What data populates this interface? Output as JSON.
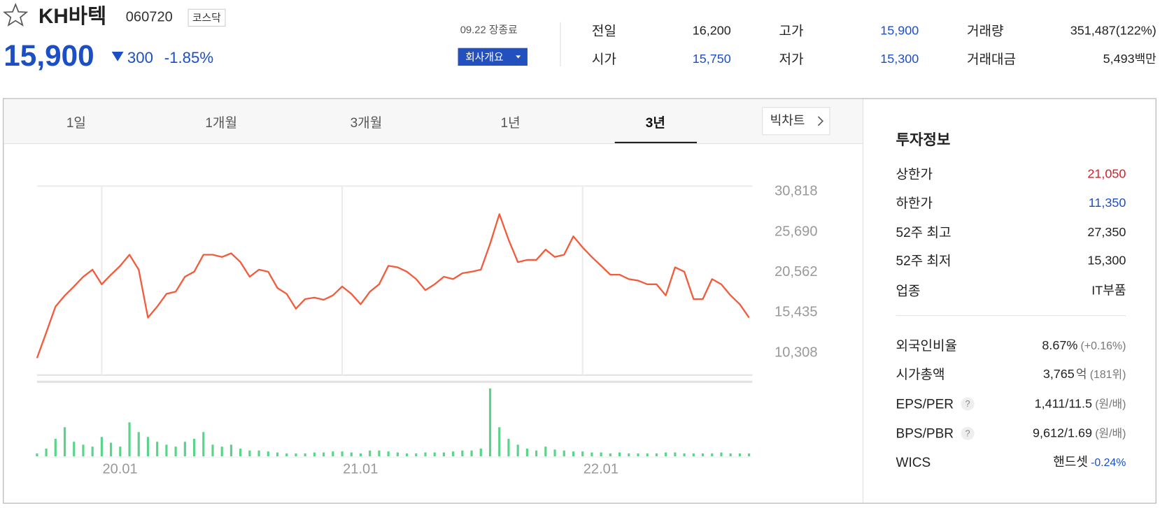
{
  "header": {
    "name": "KH바텍",
    "code": "060720",
    "market": "코스닥",
    "price": "15,900",
    "change": "300",
    "change_rate": "-1.85%",
    "date_status": "09.22 장종료",
    "company_button": "회사개요"
  },
  "stats": [
    {
      "label": "전일",
      "value": "16,200"
    },
    {
      "label": "고가",
      "value": "15,900"
    },
    {
      "label": "거래량",
      "value": "351,487(122%)"
    },
    {
      "label": "시가",
      "value": "15,750"
    },
    {
      "label": "저가",
      "value": "15,300"
    },
    {
      "label": "거래대금",
      "value": "5,493",
      "unit": "백만"
    }
  ],
  "tabs": [
    "1일",
    "1개월",
    "3개월",
    "1년",
    "3년"
  ],
  "big_chart": "빅차트",
  "chart_data": [
    {
      "type": "line",
      "color": "#f25c3c",
      "categories": [
        null,
        null,
        null,
        null,
        null,
        null,
        null,
        "20.01",
        null,
        null,
        null,
        null,
        null,
        null,
        null,
        null,
        null,
        null,
        null,
        null,
        null,
        null,
        null,
        null,
        null,
        null,
        null,
        null,
        null,
        null,
        null,
        null,
        null,
        "21.01",
        null,
        null,
        null,
        null,
        null,
        null,
        null,
        null,
        null,
        null,
        null,
        null,
        null,
        null,
        null,
        null,
        null,
        null,
        null,
        null,
        null,
        null,
        null,
        null,
        null,
        "22.01",
        null,
        null,
        null,
        null,
        null,
        null,
        null,
        null,
        null,
        null,
        null,
        null,
        null,
        null,
        null,
        null,
        null,
        null
      ],
      "values": [
        9650,
        12900,
        16200,
        17600,
        18760,
        20000,
        20900,
        19040,
        20260,
        21390,
        22800,
        20900,
        14800,
        16200,
        17820,
        18100,
        20000,
        20640,
        22800,
        22800,
        22510,
        22980,
        21860,
        20000,
        20900,
        20640,
        18570,
        17820,
        15940,
        17160,
        17350,
        17070,
        17630,
        18760,
        17820,
        16500,
        18100,
        19040,
        21390,
        21200,
        20640,
        19700,
        18290,
        19040,
        20000,
        19700,
        20450,
        20640,
        20900,
        24200,
        27960,
        24700,
        21860,
        22140,
        22140,
        23450,
        22510,
        22800,
        25140,
        23730,
        22510,
        21390,
        20260,
        20260,
        19700,
        19510,
        19040,
        19040,
        17630,
        21200,
        20640,
        17160,
        17160,
        19700,
        19040,
        17630,
        16500,
        14800
      ],
      "ylim": [
        7491,
        31716
      ],
      "yticks": [
        {
          "value": 10308,
          "label": "10,308"
        },
        {
          "value": 15435,
          "label": "15,435"
        },
        {
          "value": 20562,
          "label": "20,562"
        },
        {
          "value": 25690,
          "label": "25,690"
        },
        {
          "value": 30818,
          "label": "30,818"
        }
      ]
    },
    {
      "type": "bar",
      "color": "#5ad48a",
      "values": [
        30000,
        80000,
        180000,
        300000,
        150000,
        120000,
        100000,
        200000,
        140000,
        100000,
        350000,
        250000,
        200000,
        150000,
        120000,
        100000,
        150000,
        180000,
        250000,
        120000,
        100000,
        120000,
        80000,
        60000,
        60000,
        50000,
        40000,
        30000,
        30000,
        30000,
        40000,
        40000,
        50000,
        50000,
        40000,
        30000,
        60000,
        60000,
        50000,
        40000,
        30000,
        30000,
        40000,
        40000,
        40000,
        50000,
        60000,
        60000,
        80000,
        700000,
        300000,
        180000,
        120000,
        80000,
        60000,
        100000,
        70000,
        60000,
        50000,
        50000,
        40000,
        40000,
        30000,
        40000,
        30000,
        30000,
        30000,
        30000,
        40000,
        40000,
        30000,
        30000,
        30000,
        30000,
        40000,
        30000,
        30000,
        30000
      ]
    }
  ],
  "invest": {
    "title": "투자정보",
    "rows": [
      {
        "label": "상한가",
        "value": "21,050"
      },
      {
        "label": "하한가",
        "value": "11,350"
      },
      {
        "label": "52주 최고",
        "value": "27,350"
      },
      {
        "label": "52주 최저",
        "value": "15,300"
      },
      {
        "label": "업종",
        "value": "IT부품"
      }
    ],
    "rows2": [
      {
        "label": "외국인비율",
        "value": "8.67%",
        "note": "(+0.16%)"
      },
      {
        "label": "시가총액",
        "value": "3,765",
        "unit": "억",
        "note": "(181위)"
      },
      {
        "label": "EPS/PER",
        "help": "?",
        "value": "1,411/11.5",
        "note": "(원/배)"
      },
      {
        "label": "BPS/PBR",
        "help": "?",
        "value": "9,612/1.69",
        "note": "(원/배)"
      },
      {
        "label": "WICS",
        "value": "핸드셋",
        "note": "-0.24%"
      }
    ]
  }
}
